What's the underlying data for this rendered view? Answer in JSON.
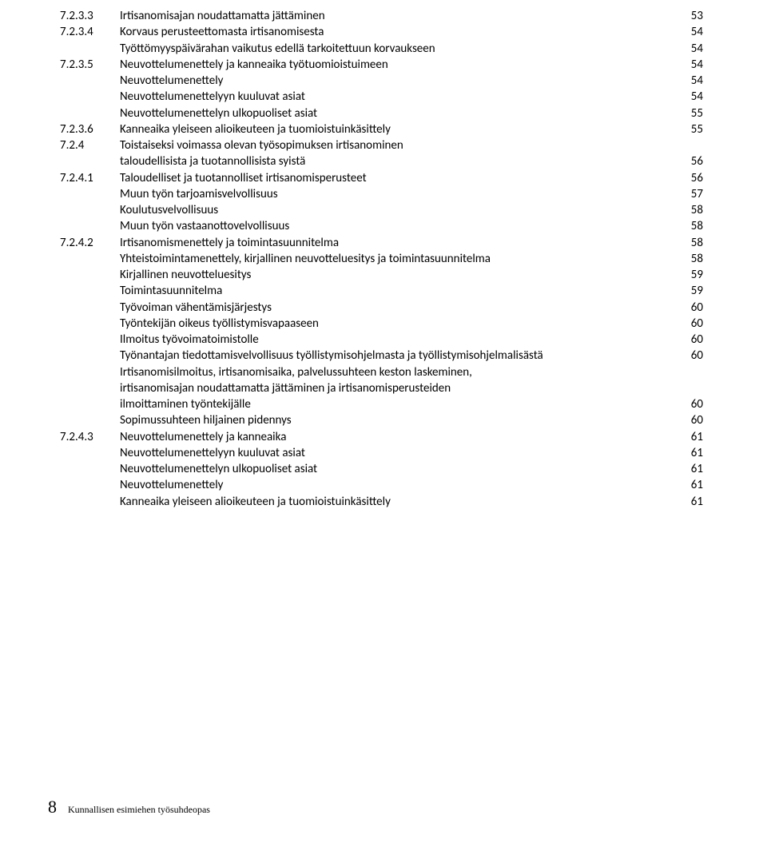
{
  "toc": [
    {
      "num": "7.2.3.3",
      "text": "Irtisanomisajan noudattamatta jättäminen",
      "page": "53"
    },
    {
      "num": "7.2.3.4",
      "text": "Korvaus perusteettomasta irtisanomisesta",
      "page": "54"
    },
    {
      "num": "",
      "text": "Työttömyyspäivärahan vaikutus edellä tarkoitettuun korvaukseen",
      "page": "54"
    },
    {
      "num": "7.2.3.5",
      "text": "Neuvottelumenettely ja kanneaika työtuomioistuimeen",
      "page": "54"
    },
    {
      "num": "",
      "text": "Neuvottelumenettely",
      "page": "54"
    },
    {
      "num": "",
      "text": "Neuvottelumenettelyyn kuuluvat asiat",
      "page": "54"
    },
    {
      "num": "",
      "text": "Neuvottelumenettelyn ulkopuoliset asiat",
      "page": "55"
    },
    {
      "num": "7.2.3.6",
      "text": "Kanneaika yleiseen alioikeuteen ja tuomioistuinkäsittely",
      "page": "55"
    },
    {
      "num": "7.2.4",
      "text": "Toistaiseksi voimassa olevan työsopimuksen irtisanominen",
      "page": ""
    },
    {
      "num": "",
      "text": "taloudellisista ja tuotannollisista syistä",
      "page": "56"
    },
    {
      "num": "7.2.4.1",
      "text": "Taloudelliset ja tuotannolliset irtisanomisperusteet",
      "page": "56"
    },
    {
      "num": "",
      "text": "Muun työn tarjoamisvelvollisuus",
      "page": "57"
    },
    {
      "num": "",
      "text": "Koulutusvelvollisuus",
      "page": "58"
    },
    {
      "num": "",
      "text": "Muun työn vastaanottovelvollisuus",
      "page": "58"
    },
    {
      "num": "7.2.4.2",
      "text": "Irtisanomismenettely ja toimintasuunnitelma",
      "page": "58"
    },
    {
      "num": "",
      "text": "Yhteistoimintamenettely, kirjallinen neuvotteluesitys ja toimintasuunnitelma",
      "page": "58"
    },
    {
      "num": "",
      "text": "Kirjallinen neuvotteluesitys",
      "page": "59"
    },
    {
      "num": "",
      "text": "Toimintasuunnitelma",
      "page": "59"
    },
    {
      "num": "",
      "text": "Työvoiman vähentämisjärjestys",
      "page": "60"
    },
    {
      "num": "",
      "text": "Työntekijän oikeus työllistymisvapaaseen",
      "page": "60"
    },
    {
      "num": "",
      "text": "Ilmoitus työvoimatoimistolle",
      "page": "60"
    },
    {
      "num": "",
      "text": "Työnantajan tiedottamisvelvollisuus työllistymisohjelmasta ja työllistymisohjelmalisästä",
      "page": "60"
    },
    {
      "num": "",
      "text": "Irtisanomisilmoitus, irtisanomisaika, palvelussuhteen keston laskeminen,",
      "page": ""
    },
    {
      "num": "",
      "text": "irtisanomisajan noudattamatta jättäminen ja irtisanomisperusteiden",
      "page": ""
    },
    {
      "num": "",
      "text": " ilmoittaminen työntekijälle",
      "page": "60"
    },
    {
      "num": "",
      "text": "Sopimussuhteen hiljainen pidennys",
      "page": "60"
    },
    {
      "num": "7.2.4.3",
      "text": "Neuvottelumenettely ja kanneaika",
      "page": "61"
    },
    {
      "num": "",
      "text": "Neuvottelumenettelyyn kuuluvat asiat",
      "page": "61"
    },
    {
      "num": "",
      "text": "Neuvottelumenettelyn ulkopuoliset asiat",
      "page": "61"
    },
    {
      "num": "",
      "text": "Neuvottelumenettely",
      "page": "61"
    },
    {
      "num": "",
      "text": "Kanneaika yleiseen alioikeuteen ja tuomioistuinkäsittely",
      "page": "61"
    }
  ],
  "footer": {
    "pageNum": "8",
    "text": "Kunnallisen esimiehen työsuhdeopas"
  }
}
